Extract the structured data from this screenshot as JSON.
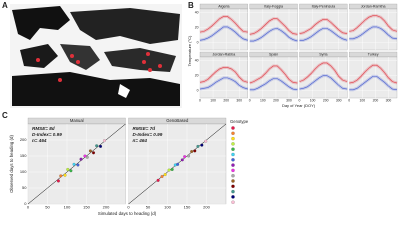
{
  "panel_labels": [
    "A",
    "B",
    "C"
  ],
  "chart_data": [
    {
      "type": "line",
      "x_label": "Day of Year (DOY)",
      "y_label": "Temperature (°C)",
      "x": [
        0,
        30,
        60,
        90,
        120,
        150,
        180,
        210,
        240,
        270,
        300,
        330,
        365
      ],
      "xlim": [
        0,
        365
      ],
      "xticks": [
        0,
        100,
        200,
        300
      ],
      "ylim": [
        -10,
        45
      ],
      "yticks": [
        0,
        20,
        40
      ],
      "facets": [
        {
          "title": "Algeria",
          "series": [
            {
              "color": "#e0404a",
              "values": [
                14,
                15,
                18,
                22,
                27,
                32,
                35,
                35,
                31,
                26,
                20,
                15,
                14
              ]
            },
            {
              "color": "#4a5fd0",
              "values": [
                3,
                4,
                6,
                9,
                13,
                17,
                21,
                21,
                18,
                14,
                9,
                5,
                3
              ]
            }
          ]
        },
        {
          "title": "Italy-Foggia",
          "series": [
            {
              "color": "#e0404a",
              "values": [
                11,
                12,
                15,
                19,
                24,
                29,
                32,
                32,
                27,
                22,
                16,
                12,
                11
              ]
            },
            {
              "color": "#4a5fd0",
              "values": [
                2,
                2,
                4,
                7,
                11,
                15,
                18,
                19,
                16,
                12,
                7,
                4,
                2
              ]
            }
          ]
        },
        {
          "title": "Italy-Peninsula",
          "series": [
            {
              "color": "#e0404a",
              "values": [
                12,
                13,
                16,
                19,
                24,
                28,
                31,
                31,
                27,
                22,
                17,
                13,
                12
              ]
            },
            {
              "color": "#4a5fd0",
              "values": [
                3,
                3,
                5,
                8,
                12,
                16,
                19,
                19,
                16,
                12,
                8,
                5,
                3
              ]
            }
          ]
        },
        {
          "title": "Jordan-Ramtha",
          "series": [
            {
              "color": "#e0404a",
              "values": [
                15,
                16,
                20,
                25,
                30,
                34,
                36,
                36,
                34,
                29,
                22,
                17,
                15
              ]
            },
            {
              "color": "#4a5fd0",
              "values": [
                5,
                5,
                7,
                10,
                14,
                18,
                21,
                21,
                19,
                15,
                10,
                6,
                5
              ]
            }
          ]
        },
        {
          "title": "Jordan-Rabba",
          "series": [
            {
              "color": "#e0404a",
              "values": [
                11,
                12,
                15,
                20,
                25,
                29,
                31,
                31,
                29,
                25,
                18,
                13,
                11
              ]
            },
            {
              "color": "#4a5fd0",
              "values": [
                2,
                3,
                4,
                7,
                11,
                14,
                17,
                17,
                15,
                12,
                7,
                4,
                2
              ]
            }
          ]
        },
        {
          "title": "Spain",
          "series": [
            {
              "color": "#e0404a",
              "values": [
                10,
                12,
                15,
                18,
                23,
                29,
                33,
                33,
                28,
                22,
                15,
                11,
                10
              ]
            },
            {
              "color": "#4a5fd0",
              "values": [
                1,
                1,
                3,
                6,
                9,
                13,
                16,
                16,
                13,
                9,
                5,
                2,
                1
              ]
            }
          ]
        },
        {
          "title": "Syria",
          "series": [
            {
              "color": "#e0404a",
              "values": [
                12,
                14,
                18,
                23,
                29,
                34,
                37,
                37,
                33,
                27,
                19,
                14,
                12
              ]
            },
            {
              "color": "#4a5fd0",
              "values": [
                2,
                3,
                5,
                9,
                13,
                17,
                20,
                20,
                17,
                12,
                7,
                3,
                2
              ]
            }
          ]
        },
        {
          "title": "Turkey",
          "series": [
            {
              "color": "#e0404a",
              "values": [
                10,
                11,
                14,
                19,
                25,
                30,
                34,
                34,
                30,
                24,
                17,
                12,
                10
              ]
            },
            {
              "color": "#4a5fd0",
              "values": [
                1,
                1,
                3,
                7,
                11,
                15,
                19,
                19,
                15,
                11,
                6,
                2,
                1
              ]
            }
          ]
        }
      ]
    },
    {
      "type": "scatter",
      "x_label": "Simulated days to heading (d)",
      "y_label": "Observed days to heading (d)",
      "xlim": [
        0,
        250
      ],
      "ylim": [
        0,
        250
      ],
      "xticks": [
        0,
        50,
        100,
        150,
        200
      ],
      "yticks": [
        0,
        50,
        100,
        150,
        200
      ],
      "legend_title": "Genotype",
      "point_colors": [
        "#e6194b",
        "#f58231",
        "#ffe119",
        "#bfef45",
        "#3cb44b",
        "#42d4f4",
        "#4363d8",
        "#911eb4",
        "#f032e6",
        "#a9a9a9",
        "#9a6324",
        "#800000",
        "#469990",
        "#000075",
        "#fabed4"
      ],
      "facets": [
        {
          "title": "Manual",
          "annotations": [
            "RMSE= 8d",
            "D-Index= 0.99",
            "n= 464"
          ],
          "x": [
            78,
            84,
            95,
            102,
            110,
            118,
            128,
            136,
            146,
            152,
            160,
            168,
            176,
            186,
            196
          ],
          "y": [
            72,
            88,
            90,
            108,
            104,
            124,
            122,
            140,
            150,
            146,
            166,
            160,
            182,
            180,
            198
          ]
        },
        {
          "title": "GenoBased",
          "annotations": [
            "RMSE= 7d",
            "D-Index= 0.99",
            "n= 464"
          ],
          "x": [
            76,
            86,
            94,
            104,
            112,
            120,
            126,
            138,
            144,
            154,
            162,
            170,
            178,
            188,
            198
          ],
          "y": [
            74,
            86,
            92,
            106,
            108,
            122,
            124,
            138,
            148,
            150,
            164,
            166,
            180,
            184,
            196
          ]
        }
      ]
    }
  ]
}
